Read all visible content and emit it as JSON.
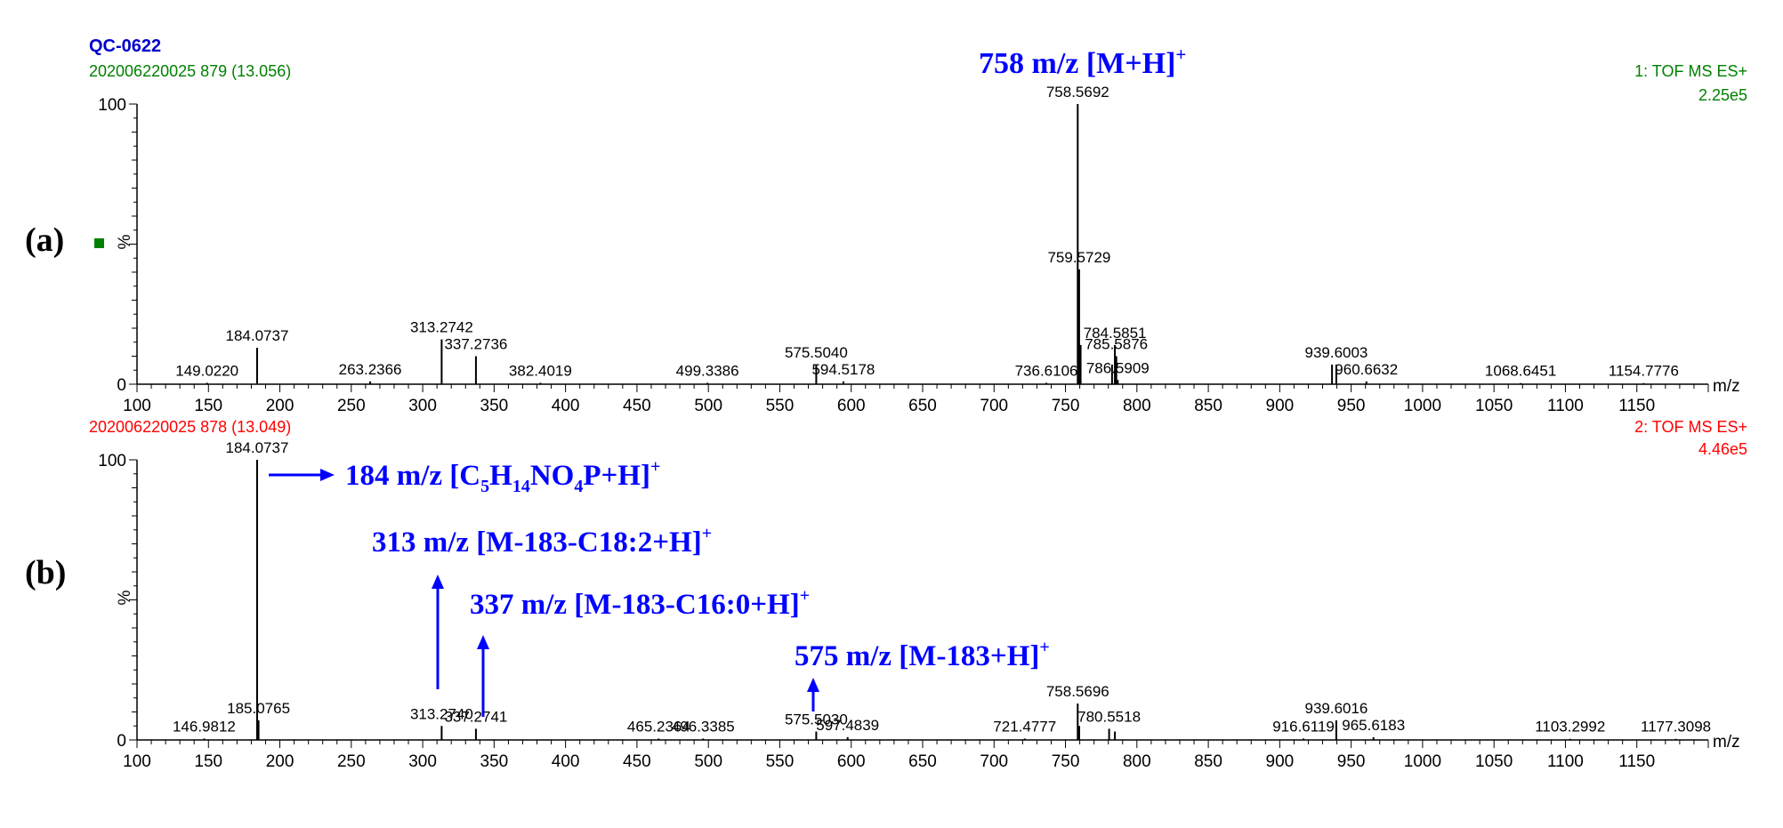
{
  "sample_name": "QC-0622",
  "panel_a_tag": "(a)",
  "panel_b_tag": "(b)",
  "colors": {
    "header_blue": "#0000cc",
    "panel_a": "#008000",
    "panel_b": "#ff0000",
    "annotation": "#0000ff",
    "spectrum": "#000000"
  },
  "annotations": {
    "a_main": "758 m/z [M+H]",
    "a_main_sup": "+",
    "b1": {
      "text": "184 m/z [C",
      "s1": "5",
      "t2": "H",
      "s2": "14",
      "t3": "NO",
      "s3": "4",
      "t4": "P+H]",
      "sup": "+"
    },
    "b2": {
      "text": "313 m/z [M-183-C18:2+H]",
      "sup": "+"
    },
    "b3": {
      "text": "337 m/z [M-183-C16:0+H]",
      "sup": "+"
    },
    "b4": {
      "text": "575 m/z [M-183+H]",
      "sup": "+"
    }
  },
  "chart_data": [
    {
      "type": "bar",
      "panel": "(a)",
      "scan_label": "202006220025 879 (13.056)",
      "function_label": "1: TOF MS ES+",
      "intensity_label": "2.25e5",
      "ylabel": "%",
      "xlabel": "m/z",
      "xlim": [
        100,
        1200
      ],
      "ylim": [
        0,
        100
      ],
      "y_ticks": [
        "0",
        "100"
      ],
      "x_ticks": [
        100,
        150,
        200,
        250,
        300,
        350,
        400,
        450,
        500,
        550,
        600,
        650,
        700,
        750,
        800,
        850,
        900,
        950,
        1000,
        1050,
        1100,
        1150
      ],
      "peaks": [
        {
          "mz": 149.022,
          "rel": 0.5,
          "label": "149.0220"
        },
        {
          "mz": 184.0737,
          "rel": 13,
          "label": "184.0737"
        },
        {
          "mz": 263.2366,
          "rel": 1,
          "label": "263.2366"
        },
        {
          "mz": 313.2742,
          "rel": 16,
          "label": "313.2742"
        },
        {
          "mz": 337.2736,
          "rel": 10,
          "label": "337.2736"
        },
        {
          "mz": 382.4019,
          "rel": 0.5,
          "label": "382.4019"
        },
        {
          "mz": 499.3386,
          "rel": 0.5,
          "label": "499.3386"
        },
        {
          "mz": 575.504,
          "rel": 7,
          "label": "575.5040"
        },
        {
          "mz": 594.5178,
          "rel": 1,
          "label": "594.5178"
        },
        {
          "mz": 736.6106,
          "rel": 0.5,
          "label": "736.6106"
        },
        {
          "mz": 758.5692,
          "rel": 100,
          "label": "758.5692"
        },
        {
          "mz": 759.5729,
          "rel": 41,
          "label": "759.5729"
        },
        {
          "mz": 760.6,
          "rel": 14,
          "label": ""
        },
        {
          "mz": 782.6,
          "rel": 7,
          "label": ""
        },
        {
          "mz": 784.5851,
          "rel": 14,
          "label": "784.5851"
        },
        {
          "mz": 785.5876,
          "rel": 10,
          "label": "785.5876"
        },
        {
          "mz": 786.5909,
          "rel": 1.5,
          "label": "786.5909"
        },
        {
          "mz": 936.6,
          "rel": 7,
          "label": ""
        },
        {
          "mz": 939.6003,
          "rel": 7,
          "label": "939.6003"
        },
        {
          "mz": 960.6632,
          "rel": 1,
          "label": "960.6632"
        },
        {
          "mz": 1068.6451,
          "rel": 0.3,
          "label": "1068.6451"
        },
        {
          "mz": 1154.7776,
          "rel": 0.3,
          "label": "1154.7776"
        }
      ]
    },
    {
      "type": "bar",
      "panel": "(b)",
      "scan_label": "202006220025 878 (13.049)",
      "function_label": "2: TOF MS ES+",
      "intensity_label": "4.46e5",
      "ylabel": "%",
      "xlabel": "m/z",
      "xlim": [
        100,
        1200
      ],
      "ylim": [
        0,
        100
      ],
      "y_ticks": [
        "0",
        "100"
      ],
      "x_ticks": [
        100,
        150,
        200,
        250,
        300,
        350,
        400,
        450,
        500,
        550,
        600,
        650,
        700,
        750,
        800,
        850,
        900,
        950,
        1000,
        1050,
        1100,
        1150
      ],
      "peaks": [
        {
          "mz": 146.9812,
          "rel": 0.5,
          "label": "146.9812"
        },
        {
          "mz": 184.0737,
          "rel": 100,
          "label": "184.0737"
        },
        {
          "mz": 185.0765,
          "rel": 7,
          "label": "185.0765"
        },
        {
          "mz": 313.274,
          "rel": 5,
          "label": "313.2740"
        },
        {
          "mz": 337.2741,
          "rel": 4,
          "label": "337.2741"
        },
        {
          "mz": 465.2364,
          "rel": 0.5,
          "label": "465.2364"
        },
        {
          "mz": 496.3385,
          "rel": 0.5,
          "label": "496.3385"
        },
        {
          "mz": 575.503,
          "rel": 3,
          "label": "575.5030"
        },
        {
          "mz": 597.4839,
          "rel": 1,
          "label": "597.4839"
        },
        {
          "mz": 721.4777,
          "rel": 0.5,
          "label": "721.4777"
        },
        {
          "mz": 758.5696,
          "rel": 13,
          "label": "758.5696"
        },
        {
          "mz": 759.6,
          "rel": 5,
          "label": ""
        },
        {
          "mz": 780.5518,
          "rel": 4,
          "label": "780.5518"
        },
        {
          "mz": 784.6,
          "rel": 3,
          "label": ""
        },
        {
          "mz": 916.6119,
          "rel": 0.5,
          "label": "916.6119"
        },
        {
          "mz": 939.6016,
          "rel": 7,
          "label": "939.6016"
        },
        {
          "mz": 965.6183,
          "rel": 1,
          "label": "965.6183"
        },
        {
          "mz": 1103.2992,
          "rel": 0.3,
          "label": "1103.2992"
        },
        {
          "mz": 1177.3098,
          "rel": 0.3,
          "label": "1177.3098"
        }
      ]
    }
  ]
}
